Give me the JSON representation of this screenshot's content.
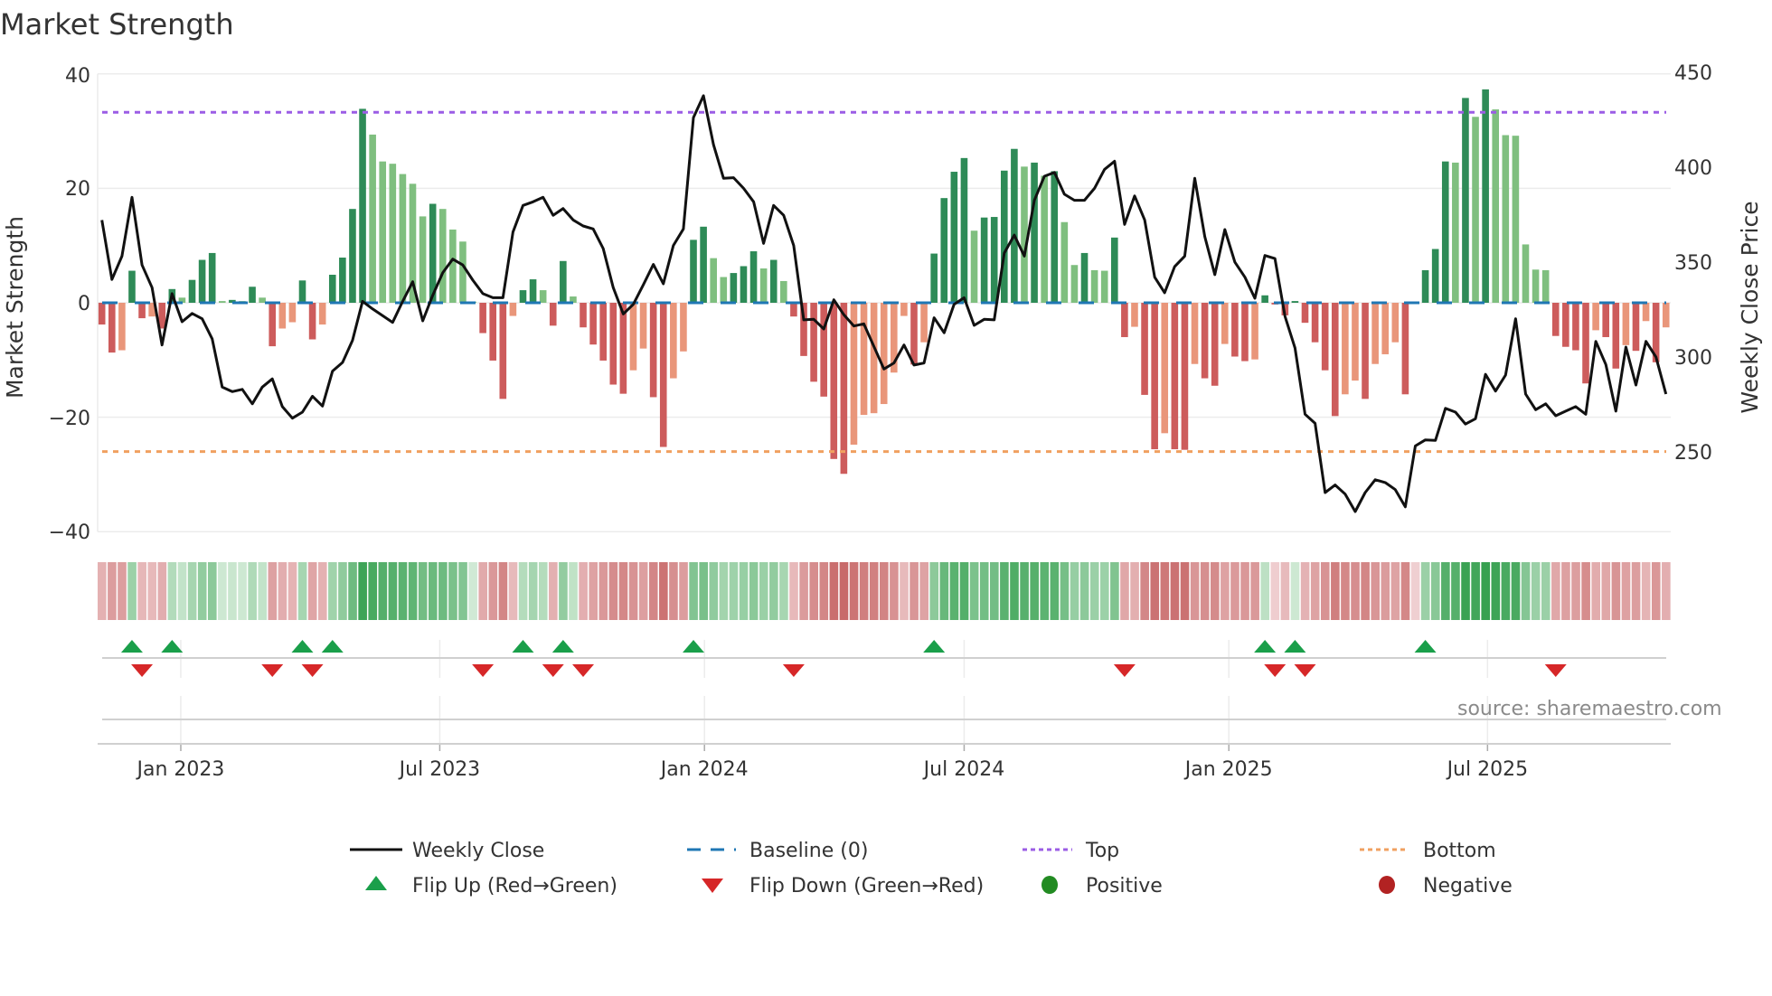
{
  "chart_data": {
    "type": "bar",
    "title": "Market Strength",
    "ylabel": "Market Strength",
    "y2label": "Weekly Close Price",
    "ylim": [
      -40,
      40
    ],
    "y2lim": [
      250,
      450
    ],
    "yticks": [
      "40",
      "20",
      "0",
      "−20",
      "−40"
    ],
    "y2ticks": [
      "450",
      "400",
      "350",
      "300",
      "250"
    ],
    "xticks": [
      "Jan 2023",
      "Jul 2023",
      "Jan 2024",
      "Jul 2024",
      "Jan 2025",
      "Jul 2025"
    ],
    "grid": true,
    "legend_position": "bottom",
    "top_level": 33.3,
    "bottom_level": -26,
    "baseline": 0,
    "colors": {
      "up_strong": "#2e8b57",
      "up_weak": "#7fbf7f",
      "down_strong": "#cd5c5c",
      "down_weak": "#e9967a",
      "close": "#111111",
      "baseline": "#1f77b4",
      "top": "#9b5de5",
      "bottom": "#f0a060",
      "flip_up": "#1a9f4a",
      "flip_down": "#d62728",
      "positive": "#228b22",
      "negative": "#b22222"
    },
    "strength": [
      -3.8,
      -8.7,
      -8.3,
      5.6,
      -2.7,
      -2.4,
      -4.5,
      2.4,
      0.9,
      4.0,
      7.5,
      8.7,
      0.3,
      0.5,
      0.3,
      2.8,
      0.9,
      -7.6,
      -4.5,
      -3.4,
      3.9,
      -6.4,
      -3.8,
      4.9,
      7.9,
      16.4,
      33.9,
      29.4,
      24.7,
      24.3,
      22.5,
      20.8,
      15.1,
      17.3,
      16.4,
      12.8,
      10.7,
      0.2,
      -5.3,
      -10.1,
      -16.8,
      -2.3,
      2.2,
      4.1,
      2.2,
      -4.0,
      7.3,
      1.1,
      -4.3,
      -7.3,
      -10.1,
      -14.3,
      -15.9,
      -11.8,
      -8.0,
      -16.5,
      -25.2,
      -13.2,
      -8.5,
      11.0,
      13.3,
      7.8,
      4.5,
      5.2,
      6.4,
      9.0,
      6.0,
      7.5,
      3.8,
      -2.4,
      -9.3,
      -13.8,
      -16.4,
      -27.3,
      -29.9,
      -24.8,
      -19.6,
      -19.3,
      -17.7,
      -12.2,
      -2.3,
      -10.8,
      -6.9,
      8.6,
      18.3,
      22.9,
      25.3,
      12.6,
      14.9,
      15.0,
      23.1,
      26.9,
      23.8,
      24.5,
      22.2,
      23.0,
      14.1,
      6.6,
      8.7,
      5.7,
      5.6,
      11.4,
      -6.0,
      -4.2,
      -16.1,
      -25.6,
      -22.8,
      -25.6,
      -25.7,
      -10.7,
      -13.2,
      -14.5,
      -7.2,
      -9.4,
      -10.2,
      -9.9,
      1.3,
      -0.3,
      -2.2,
      0.3,
      -3.5,
      -6.9,
      -11.8,
      -19.8,
      -16.0,
      -13.6,
      -16.8,
      -10.7,
      -9.0,
      -6.9,
      -16.0,
      -0.2,
      5.7,
      9.4,
      24.7,
      24.5,
      35.8,
      32.5,
      37.3,
      33.8,
      29.3,
      29.2,
      10.2,
      5.8,
      5.7,
      -5.8,
      -7.7,
      -8.3,
      -14.1,
      -4.8,
      -6.0,
      -11.5,
      -7.4,
      -8.4,
      -3.2,
      -10.4,
      -4.3
    ],
    "weekly_close": [
      372.3,
      341,
      353.3,
      384.3,
      348.6,
      336.7,
      306.5,
      333.5,
      318.7,
      323.1,
      320.3,
      309.7,
      284.3,
      281.9,
      283.1,
      275.5,
      284.3,
      288.6,
      274,
      267.9,
      271.1,
      279.5,
      274.3,
      292.7,
      297.3,
      308.9,
      329.5,
      325.5,
      321.9,
      318.4,
      329.5,
      339.8,
      319.2,
      332.7,
      344.6,
      351.7,
      348.6,
      340.6,
      333.5,
      331.4,
      331.4,
      366,
      380,
      381.9,
      384.3,
      374.8,
      378.4,
      372.4,
      369.2,
      367.6,
      357.3,
      336.7,
      322.8,
      327.9,
      338.2,
      348.9,
      338.7,
      358.9,
      367.6,
      426.3,
      437.8,
      412,
      394.3,
      394.6,
      389,
      381.9,
      360,
      380,
      374.8,
      358.9,
      319.7,
      320,
      314.9,
      330.3,
      322.4,
      316.5,
      317.6,
      305.7,
      293.8,
      297,
      306.5,
      295.9,
      297,
      320.8,
      312.9,
      327.9,
      331.4,
      316.8,
      320,
      319.7,
      354.9,
      364.4,
      353.3,
      382.7,
      395.4,
      397.4,
      385.9,
      382.7,
      382.7,
      389,
      399,
      403.3,
      370,
      385,
      372.4,
      342.2,
      334,
      347.8,
      353.3,
      394.3,
      363.6,
      343.5,
      367.3,
      350.1,
      342.2,
      331.1,
      353.6,
      352,
      321.6,
      304.9,
      270,
      265.2,
      228.7,
      232.7,
      227.9,
      218.7,
      228.7,
      235.5,
      234,
      230.3,
      221.2,
      253.3,
      256.5,
      256.2,
      273.1,
      271.1,
      264.8,
      267.6,
      291,
      282.2,
      290.6,
      320.3,
      280.6,
      272.4,
      275.5,
      269.2,
      271.6,
      274,
      270,
      308.4,
      296.2,
      271.6,
      305.4,
      285.4,
      308.4,
      300.1,
      280.6
    ],
    "legend": [
      {
        "label": "Weekly Close"
      },
      {
        "label": "Baseline (0)"
      },
      {
        "label": "Top"
      },
      {
        "label": "Bottom"
      },
      {
        "label": "Flip Up (Red→Green)"
      },
      {
        "label": "Flip Down (Green→Red)"
      },
      {
        "label": "Positive"
      },
      {
        "label": "Negative"
      }
    ],
    "source": "source: sharemaestro.com"
  }
}
